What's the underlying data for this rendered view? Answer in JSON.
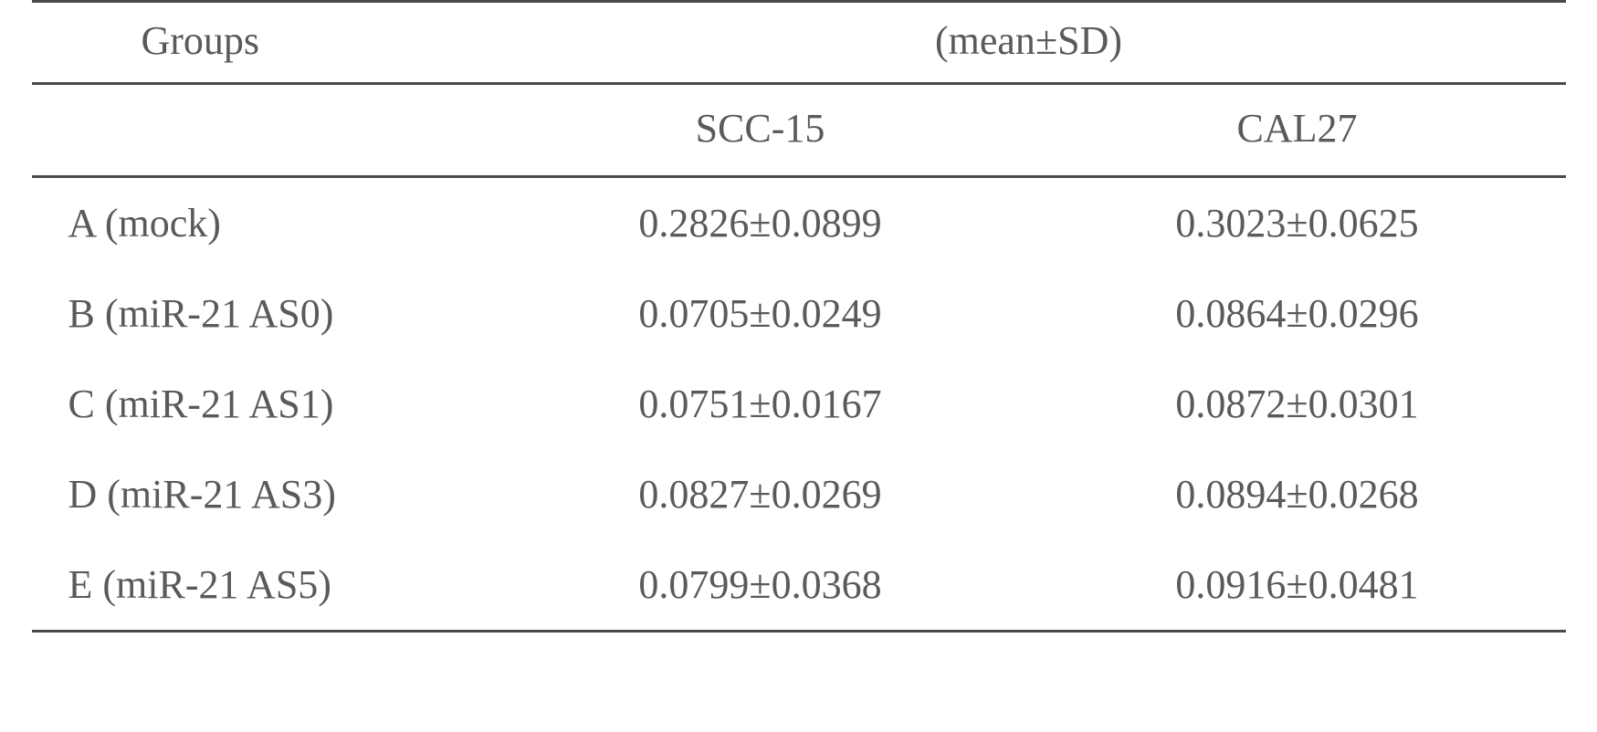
{
  "table": {
    "type": "table",
    "header": {
      "groups_label": "Groups",
      "mean_sd_label_prefix": "(mean",
      "mean_sd_label_suffix": "SD)",
      "plusminus": "±"
    },
    "columns": [
      "SCC-15",
      "CAL27"
    ],
    "rows": [
      {
        "label": "A (mock)",
        "scc15": "0.2826±0.0899",
        "cal27": "0.3023±0.0625"
      },
      {
        "label": "B (miR-21 AS0)",
        "scc15": "0.0705±0.0249",
        "cal27": "0.0864±0.0296"
      },
      {
        "label": "C (miR-21 AS1)",
        "scc15": "0.0751±0.0167",
        "cal27": "0.0872±0.0301"
      },
      {
        "label": "D (miR-21 AS3)",
        "scc15": "0.0827±0.0269",
        "cal27": "0.0894±0.0268"
      },
      {
        "label": "E (miR-21 AS5)",
        "scc15": "0.0799±0.0368",
        "cal27": "0.0916±0.0481"
      }
    ],
    "colors": {
      "text": "#5a5a5a",
      "border": "#4a4a4a",
      "background": "#ffffff"
    },
    "font_size": 44,
    "border_width": 3
  }
}
